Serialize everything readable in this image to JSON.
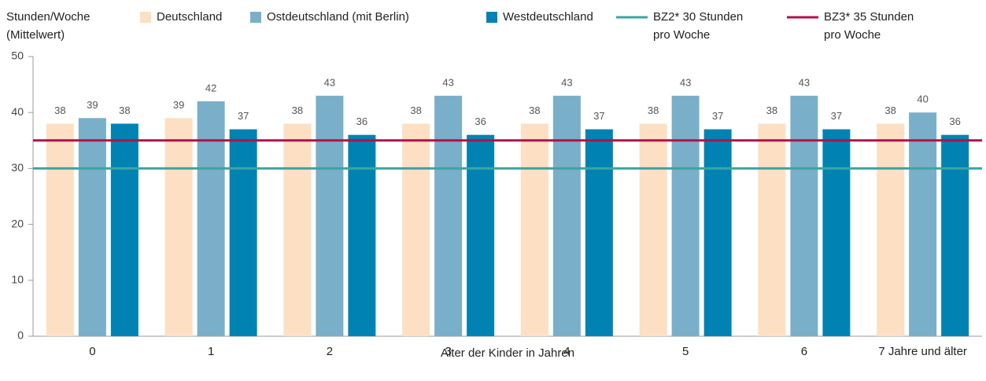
{
  "chart_data": {
    "type": "bar",
    "y_label": [
      "Stunden/Woche",
      "(Mittelwert)"
    ],
    "x_label": "Alter der Kinder in Jahren",
    "categories": [
      "0",
      "1",
      "2",
      "3",
      "4",
      "5",
      "6",
      "7 Jahre und älter"
    ],
    "series": [
      {
        "name": "Deutschland",
        "color": "#fddfc3",
        "values": [
          38,
          39,
          38,
          38,
          38,
          38,
          38,
          38
        ]
      },
      {
        "name": "Ostdeutschland (mit Berlin)",
        "color": "#7aafc9",
        "values": [
          39,
          42,
          43,
          43,
          43,
          43,
          43,
          40
        ]
      },
      {
        "name": "Westdeutschland",
        "color": "#0083b3",
        "values": [
          38,
          37,
          36,
          36,
          37,
          37,
          37,
          36
        ]
      }
    ],
    "reference_lines": [
      {
        "name": [
          "BZ2* 30 Stunden",
          "pro Woche"
        ],
        "value": 30,
        "color": "#3aa6a0"
      },
      {
        "name": [
          "BZ3* 35 Stunden",
          "pro Woche"
        ],
        "value": 35,
        "color": "#b0124a"
      }
    ],
    "ylim": [
      0,
      50
    ],
    "yticks": [
      0,
      10,
      20,
      30,
      40,
      50
    ]
  }
}
